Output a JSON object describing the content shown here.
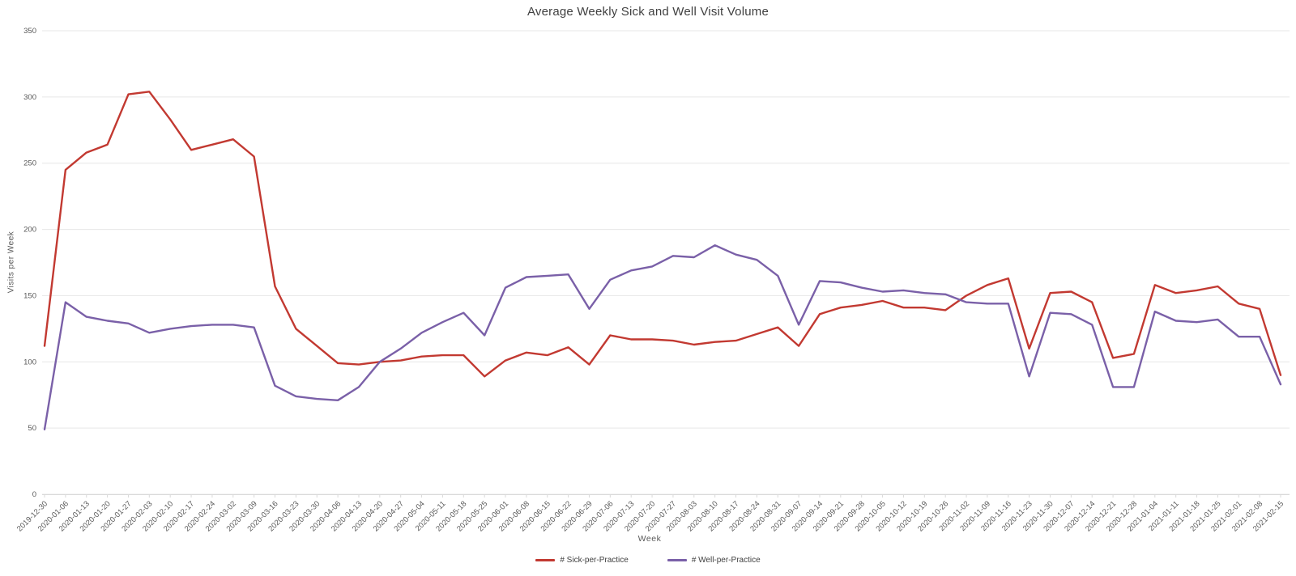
{
  "title": "Average Weekly Sick and Well Visit Volume",
  "chart_data": {
    "type": "line",
    "title": "Average Weekly Sick and Well Visit Volume",
    "xlabel": "Week",
    "ylabel": "Visits per Week",
    "ylim": [
      0,
      350
    ],
    "yticks": [
      0,
      50,
      100,
      150,
      200,
      250,
      300,
      350
    ],
    "grid": true,
    "legend_position": "bottom",
    "categories": [
      "2019-12-30",
      "2020-01-06",
      "2020-01-13",
      "2020-01-20",
      "2020-01-27",
      "2020-02-03",
      "2020-02-10",
      "2020-02-17",
      "2020-02-24",
      "2020-03-02",
      "2020-03-09",
      "2020-03-16",
      "2020-03-23",
      "2020-03-30",
      "2020-04-06",
      "2020-04-13",
      "2020-04-20",
      "2020-04-27",
      "2020-05-04",
      "2020-05-11",
      "2020-05-18",
      "2020-05-25",
      "2020-06-01",
      "2020-06-08",
      "2020-06-15",
      "2020-06-22",
      "2020-06-29",
      "2020-07-06",
      "2020-07-13",
      "2020-07-20",
      "2020-07-27",
      "2020-08-03",
      "2020-08-10",
      "2020-08-17",
      "2020-08-24",
      "2020-08-31",
      "2020-09-07",
      "2020-09-14",
      "2020-09-21",
      "2020-09-28",
      "2020-10-05",
      "2020-10-12",
      "2020-10-19",
      "2020-10-26",
      "2020-11-02",
      "2020-11-09",
      "2020-11-16",
      "2020-11-23",
      "2020-11-30",
      "2020-12-07",
      "2020-12-14",
      "2020-12-21",
      "2020-12-28",
      "2021-01-04",
      "2021-01-11",
      "2021-01-18",
      "2021-01-25",
      "2021-02-01",
      "2021-02-08",
      "2021-02-15"
    ],
    "series": [
      {
        "name": "# Sick-per-Practice",
        "color": "#c23931",
        "values": [
          112,
          245,
          258,
          264,
          302,
          304,
          283,
          260,
          264,
          268,
          255,
          157,
          125,
          112,
          99,
          98,
          100,
          101,
          104,
          105,
          105,
          89,
          101,
          107,
          105,
          111,
          98,
          120,
          117,
          117,
          116,
          113,
          115,
          116,
          121,
          126,
          112,
          136,
          141,
          143,
          146,
          141,
          141,
          139,
          150,
          158,
          163,
          110,
          152,
          153,
          145,
          103,
          106,
          158,
          152,
          154,
          157,
          144,
          140,
          90
        ]
      },
      {
        "name": "# Well-per-Practice",
        "color": "#7a60a8",
        "values": [
          49,
          145,
          134,
          131,
          129,
          122,
          125,
          127,
          128,
          128,
          126,
          82,
          74,
          72,
          71,
          81,
          100,
          110,
          122,
          130,
          137,
          120,
          156,
          164,
          165,
          166,
          140,
          162,
          169,
          172,
          180,
          179,
          188,
          181,
          177,
          165,
          128,
          161,
          160,
          156,
          153,
          154,
          152,
          151,
          145,
          144,
          144,
          89,
          137,
          136,
          128,
          81,
          81,
          138,
          131,
          130,
          132,
          119,
          119,
          83
        ]
      }
    ]
  }
}
